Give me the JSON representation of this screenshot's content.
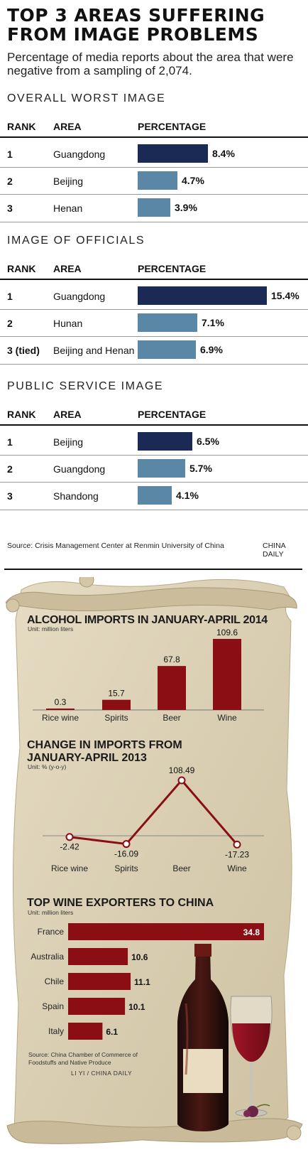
{
  "header": {
    "title_line1": "TOP 3 AREAS SUFFERING",
    "title_line2": "FROM IMAGE PROBLEMS",
    "subtitle_line1": "Percentage of media reports about the area that were",
    "subtitle_line2": "negative from a sampling of 2,074."
  },
  "table_columns": {
    "rank": "RANK",
    "area": "AREA",
    "percentage": "PERCENTAGE"
  },
  "colors": {
    "dark_navy": "#1b2a55",
    "steel_blue": "#5b87a6",
    "wine_red": "#8b0e14",
    "parchment": "#ddd2b8"
  },
  "sections": [
    {
      "heading": "OVERALL WORST IMAGE",
      "rows": [
        {
          "rank": "1",
          "area": "Guangdong",
          "value": 8.4,
          "label": "8.4%",
          "highlight": true
        },
        {
          "rank": "2",
          "area": "Beijing",
          "value": 4.7,
          "label": "4.7%",
          "highlight": false
        },
        {
          "rank": "3",
          "area": "Henan",
          "value": 3.9,
          "label": "3.9%",
          "highlight": false
        }
      ]
    },
    {
      "heading": "IMAGE OF OFFICIALS",
      "rows": [
        {
          "rank": "1",
          "area": "Guangdong",
          "value": 15.4,
          "label": "15.4%",
          "highlight": true
        },
        {
          "rank": "2",
          "area": "Hunan",
          "value": 7.1,
          "label": "7.1%",
          "highlight": false
        },
        {
          "rank": "3 (tied)",
          "area": "Beijing and Henan",
          "value": 6.9,
          "label": "6.9%",
          "highlight": false
        }
      ]
    },
    {
      "heading": "PUBLIC SERVICE IMAGE",
      "rows": [
        {
          "rank": "1",
          "area": "Beijing",
          "value": 6.5,
          "label": "6.5%",
          "highlight": true
        },
        {
          "rank": "2",
          "area": "Guangdong",
          "value": 5.7,
          "label": "5.7%",
          "highlight": false
        },
        {
          "rank": "3",
          "area": "Shandong",
          "value": 4.1,
          "label": "4.1%",
          "highlight": false
        }
      ]
    }
  ],
  "footer": {
    "source": "Source:  Crisis Management Center at Renmin University of China",
    "credit": "CHINA DAILY"
  },
  "alcohol": {
    "source_line1": "Source: China Chamber of Commerce of",
    "source_line2": "Foodstuffs and Native Produce",
    "credit": "LI YI / CHINA DAILY"
  },
  "chart_data": [
    {
      "type": "bar",
      "title": "OVERALL WORST IMAGE",
      "categories": [
        "Guangdong",
        "Beijing",
        "Henan"
      ],
      "values": [
        8.4,
        4.7,
        3.9
      ],
      "unit": "%"
    },
    {
      "type": "bar",
      "title": "IMAGE OF OFFICIALS",
      "categories": [
        "Guangdong",
        "Hunan",
        "Beijing and Henan"
      ],
      "values": [
        15.4,
        7.1,
        6.9
      ],
      "unit": "%"
    },
    {
      "type": "bar",
      "title": "PUBLIC SERVICE IMAGE",
      "categories": [
        "Beijing",
        "Guangdong",
        "Shandong"
      ],
      "values": [
        6.5,
        5.7,
        4.1
      ],
      "unit": "%"
    },
    {
      "type": "bar",
      "title": "ALCOHOL IMPORTS IN JANUARY-APRIL 2014",
      "unit": "Unit: million liters",
      "categories": [
        "Rice wine",
        "Spirits",
        "Beer",
        "Wine"
      ],
      "values": [
        0.3,
        15.7,
        67.8,
        109.6
      ],
      "labels": [
        "0.3",
        "15.7",
        "67.8",
        "109.6"
      ]
    },
    {
      "type": "line",
      "title_line1": "CHANGE IN IMPORTS FROM",
      "title_line2": "JANUARY-APRIL 2013",
      "unit": "Unit: % (y-o-y)",
      "categories": [
        "Rice wine",
        "Spirits",
        "Beer",
        "Wine"
      ],
      "values": [
        -2.42,
        -16.09,
        108.49,
        -17.23
      ],
      "labels": [
        "-2.42",
        "-16.09",
        "108.49",
        "-17.23"
      ]
    },
    {
      "type": "bar",
      "orientation": "horizontal",
      "title": "TOP WINE EXPORTERS TO CHINA",
      "unit": "Unit: million liters",
      "categories": [
        "France",
        "Australia",
        "Chile",
        "Spain",
        "Italy"
      ],
      "values": [
        34.8,
        10.6,
        11.1,
        10.1,
        6.1
      ],
      "labels": [
        "34.8",
        "10.6",
        "11.1",
        "10.1",
        "6.1"
      ]
    }
  ]
}
